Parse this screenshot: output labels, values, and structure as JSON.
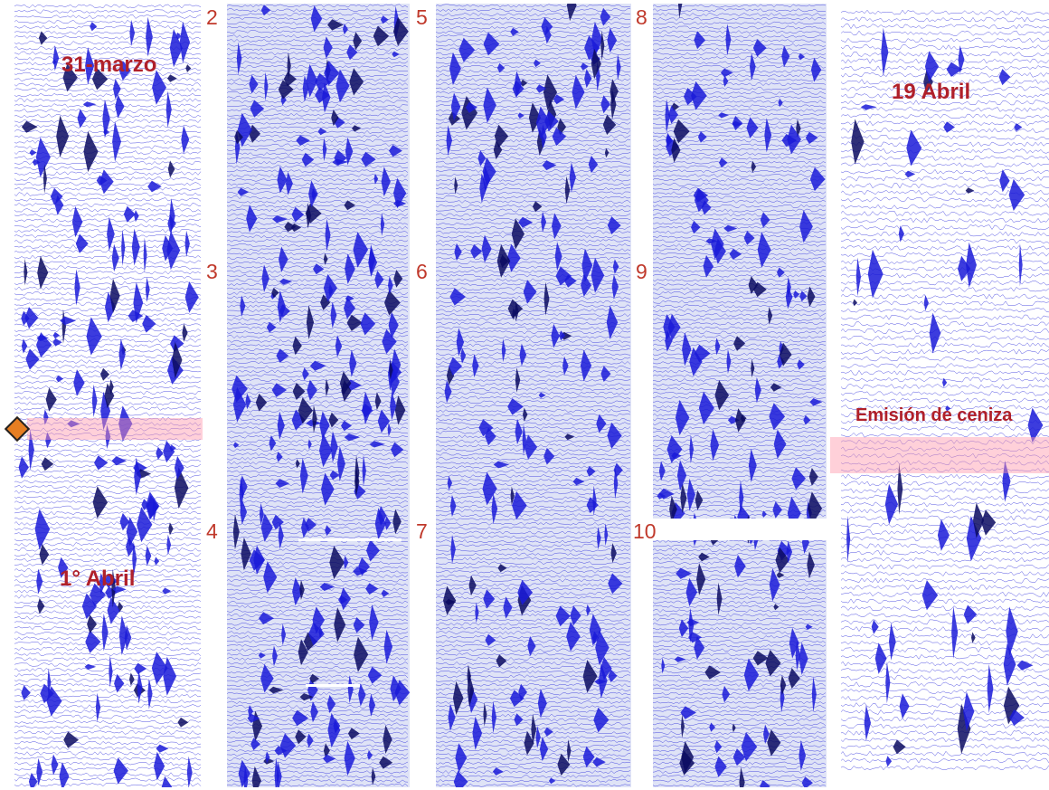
{
  "panel_numbers": [
    "2",
    "3",
    "4",
    "5",
    "6",
    "7",
    "8",
    "9",
    "10"
  ],
  "labels": {
    "march31": "31-marzo",
    "april1": "1° Abril",
    "april19": "19 Abril",
    "ash": "Emisión de ceniza"
  },
  "colors": {
    "trace": "#1a1ad8",
    "trace_dark": "#0a0a60",
    "background": "#ffffff",
    "panel_tint": "#dfe3f6",
    "label_red": "#b0202a",
    "number_red": "#c0392b",
    "band_pink": "#ff96aa",
    "marker_orange": "#e67e22"
  }
}
